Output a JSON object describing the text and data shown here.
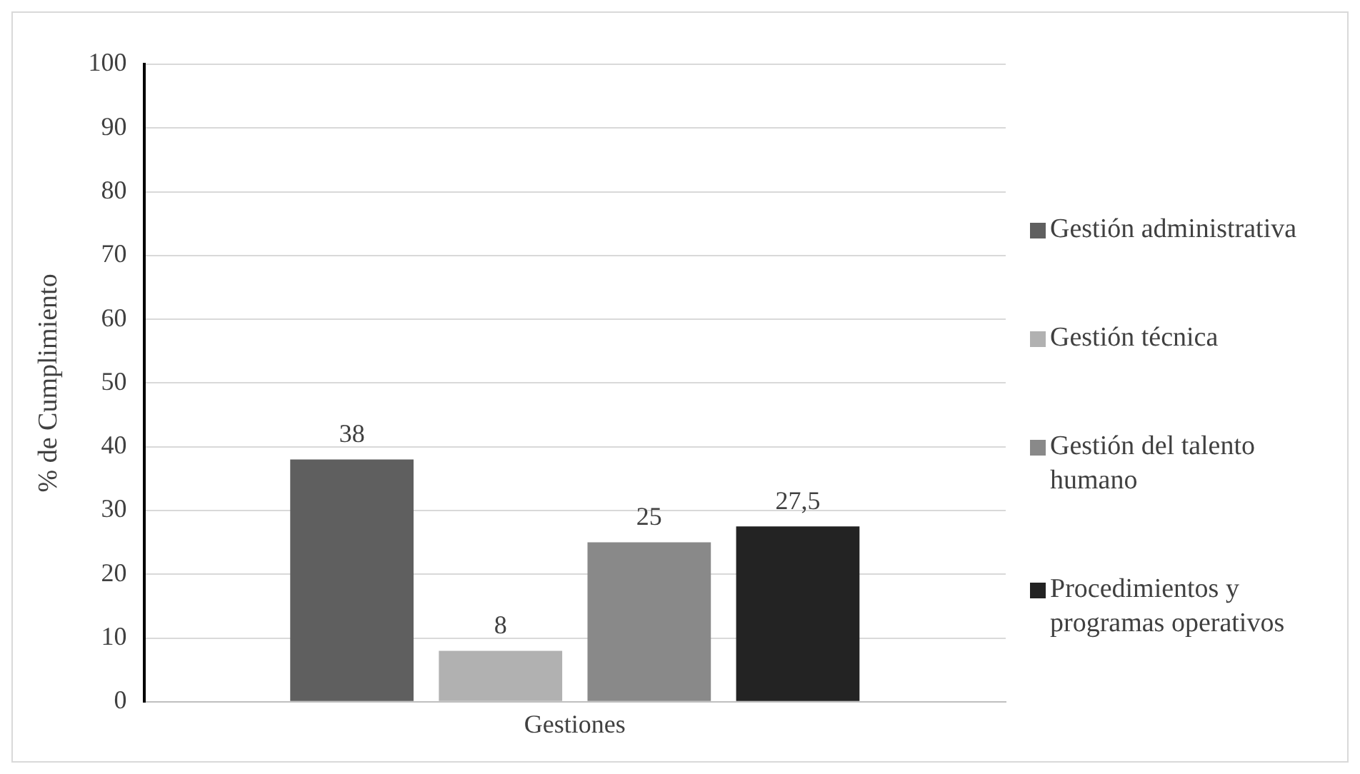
{
  "chart_data": {
    "type": "bar",
    "categories": [
      "Gestiones"
    ],
    "ylabel": "% de Cumplimiento",
    "series": [
      {
        "name": "Gestión administrativa",
        "color": "#5f5f5f",
        "values": [
          38
        ],
        "value_labels": [
          "38"
        ]
      },
      {
        "name": "Gestión técnica",
        "color": "#b1b1b1",
        "values": [
          8
        ],
        "value_labels": [
          "8"
        ]
      },
      {
        "name": "Gestión del talento humano",
        "color": "#898989",
        "values": [
          25
        ],
        "value_labels": [
          "25"
        ]
      },
      {
        "name": "Procedimientos y programas operativos",
        "color": "#232323",
        "values": [
          27.5
        ],
        "value_labels": [
          "27,5"
        ]
      }
    ],
    "ylim": [
      0,
      100
    ],
    "yticks": [
      0,
      10,
      20,
      30,
      40,
      50,
      60,
      70,
      80,
      90,
      100
    ],
    "grid": "y",
    "legend": "right"
  }
}
